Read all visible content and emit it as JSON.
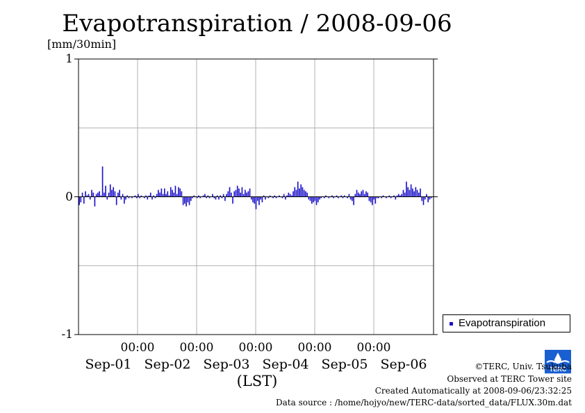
{
  "chart_data": {
    "type": "bar",
    "title": "Evapotranspiration / 2008-09-06",
    "ylabel": "[mm/30min]",
    "xlabel": "(LST)",
    "ylim": [
      -1,
      1
    ],
    "yticks": [
      "1",
      "0",
      "-1"
    ],
    "x_time_labels": [
      "00:00",
      "00:00",
      "00:00",
      "00:00",
      "00:00"
    ],
    "x_date_labels": [
      "Sep-01",
      "Sep-02",
      "Sep-03",
      "Sep-04",
      "Sep-05",
      "Sep-06"
    ],
    "grid": true,
    "legend_position": "right",
    "series": [
      {
        "name": "Evapotranspiration",
        "color": "#1a10c8",
        "values": [
          -0.06,
          -0.04,
          0.03,
          -0.05,
          0.04,
          0.01,
          0.02,
          -0.02,
          0.05,
          0.03,
          -0.07,
          0.02,
          0.03,
          0.04,
          0.01,
          0.22,
          0.03,
          0.08,
          -0.02,
          0.03,
          0.09,
          0.05,
          0.07,
          0.04,
          -0.06,
          0.03,
          0.05,
          -0.02,
          0.02,
          -0.05,
          -0.02,
          0.01,
          -0.01,
          0,
          -0.01,
          0,
          0.01,
          -0.01,
          0.02,
          -0.01,
          0.01,
          0,
          -0.01,
          0.01,
          -0.02,
          0.01,
          0.03,
          -0.02,
          0.01,
          -0.01,
          0.02,
          0.05,
          0.03,
          0.06,
          0.02,
          0.06,
          0.02,
          0.04,
          0.01,
          0.07,
          0.05,
          0.03,
          0.08,
          0.02,
          0.07,
          0.06,
          0.04,
          -0.06,
          -0.05,
          -0.07,
          -0.04,
          -0.06,
          -0.03,
          -0.01,
          0.01,
          0,
          -0.01,
          0.01,
          -0.01,
          0,
          0.01,
          0.02,
          -0.01,
          0.01,
          -0.01,
          0,
          0.02,
          -0.01,
          -0.02,
          0.01,
          -0.02,
          0.01,
          -0.01,
          0.02,
          -0.03,
          0.02,
          0.04,
          0.07,
          0.03,
          -0.05,
          0.04,
          0.05,
          0.08,
          0.06,
          0.03,
          0.07,
          0.02,
          0.05,
          0.03,
          0.04,
          0.06,
          -0.02,
          -0.04,
          -0.05,
          -0.09,
          -0.03,
          -0.06,
          -0.02,
          -0.04,
          0.01,
          -0.02,
          0,
          -0.01,
          0.01,
          0,
          -0.01,
          0.01,
          -0.01,
          0,
          0.01,
          0,
          -0.01,
          0.02,
          -0.02,
          0.01,
          0.03,
          0.02,
          0.01,
          0.04,
          0.07,
          0.05,
          0.11,
          0.06,
          0.09,
          0.07,
          0.05,
          0.04,
          0.03,
          -0.02,
          -0.03,
          -0.05,
          -0.04,
          -0.03,
          -0.06,
          -0.04,
          -0.02,
          -0.01,
          0,
          -0.01,
          0.01,
          0,
          -0.01,
          0,
          0.01,
          -0.01,
          0,
          0.01,
          -0.01,
          0,
          0.01,
          -0.01,
          0.01,
          0,
          -0.01,
          0.02,
          -0.02,
          -0.03,
          -0.06,
          0.02,
          0.05,
          0.03,
          0.02,
          0.04,
          0.05,
          0.02,
          0.04,
          0.03,
          -0.03,
          -0.04,
          -0.06,
          -0.02,
          -0.05,
          -0.01,
          -0.01,
          0,
          -0.01,
          0.01,
          0,
          -0.01,
          0,
          0.01,
          -0.01,
          0,
          0.01,
          -0.02,
          0.01,
          0.02,
          0.01,
          0.02,
          0.05,
          0.03,
          0.11,
          0.07,
          0.05,
          0.09,
          0.06,
          0.04,
          0.07,
          0.05,
          0.03,
          0.06,
          -0.03,
          -0.06,
          -0.02,
          0.02,
          -0.04,
          -0.02,
          -0.01,
          0
        ]
      }
    ]
  },
  "footer": {
    "copyright": "©TERC, Univ. Tsukuba",
    "site": "Observed at TERC Tower site",
    "created": "Created Automatically at 2008-09-06/23:32:25",
    "source": "Data source : /home/hojyo/new/TERC-data/sorted_data/FLUX.30m.dat"
  },
  "logo": {
    "text": "TERC",
    "color": "#1a5fd0"
  }
}
